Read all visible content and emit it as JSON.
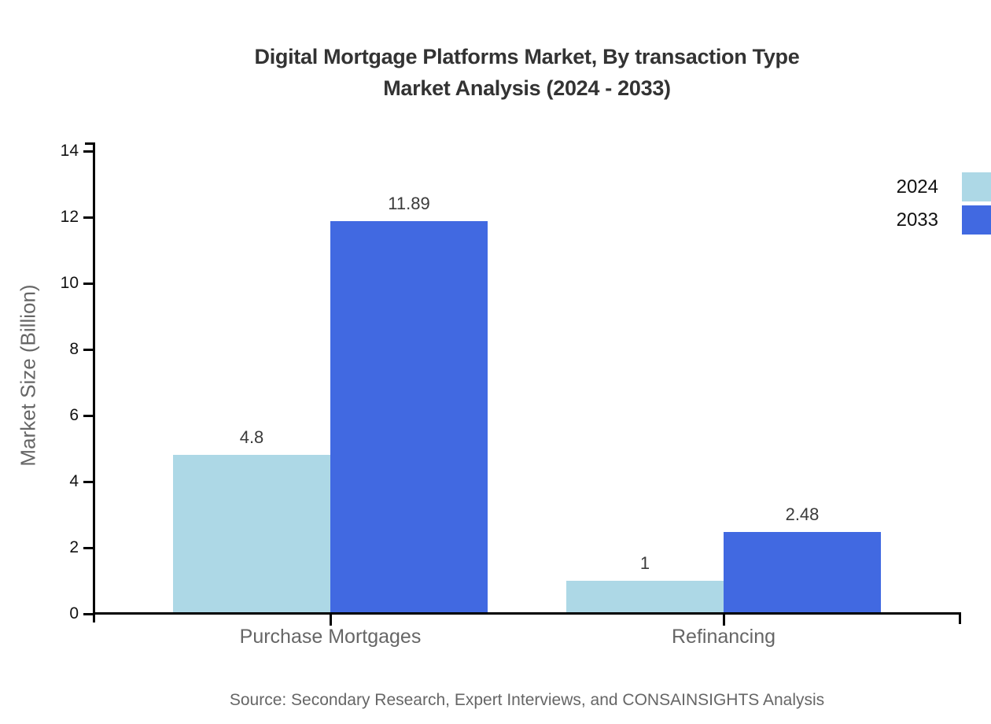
{
  "title": {
    "line1": "Digital Mortgage Platforms Market, By transaction Type",
    "line2": "Market Analysis (2024 - 2033)"
  },
  "legend": {
    "items": [
      {
        "label": "2024",
        "color": "#ADD8E6"
      },
      {
        "label": "2033",
        "color": "#4169E1"
      }
    ]
  },
  "y_axis": {
    "label": "Market Size (Billion)"
  },
  "source": "Source: Secondary Research, Expert Interviews, and CONSAINSIGHTS Analysis",
  "chart_data": {
    "type": "bar",
    "title": "Digital Mortgage Platforms Market, By transaction Type Market Analysis (2024 - 2033)",
    "categories": [
      "Purchase Mortgages",
      "Refinancing"
    ],
    "series": [
      {
        "name": "2024",
        "color": "#ADD8E6",
        "values": [
          4.8,
          1
        ]
      },
      {
        "name": "2033",
        "color": "#4169E1",
        "values": [
          11.89,
          2.48
        ]
      }
    ],
    "xlabel": "",
    "ylabel": "Market Size (Billion)",
    "ylim": [
      0,
      14
    ],
    "yticks": [
      0,
      2,
      4,
      6,
      8,
      10,
      12,
      14
    ],
    "grid": false,
    "legend_position": "top-right",
    "value_labels_shown": true
  }
}
